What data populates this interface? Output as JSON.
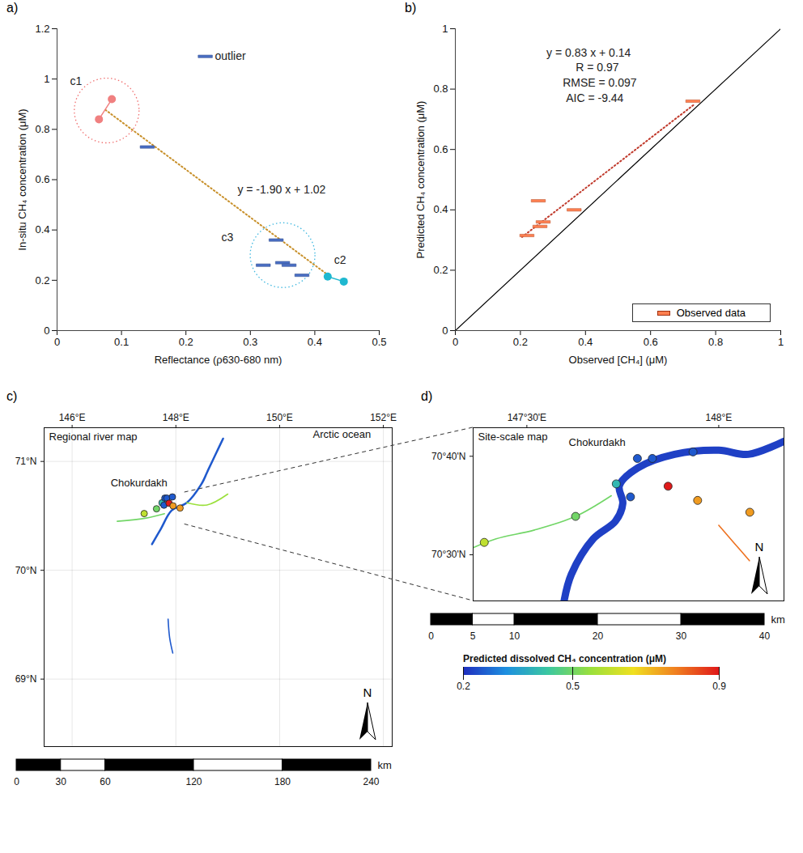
{
  "chart_data": [
    {
      "panel": "a)",
      "type": "scatter",
      "x_label": "Reflectance (ρ630-680 nm)",
      "y_label": "In-situ CH₄ concentration (μM)",
      "xlim": [
        0,
        0.5
      ],
      "xticks": [
        0,
        0.1,
        0.2,
        0.3,
        0.4,
        0.5
      ],
      "ylim": [
        0,
        1.2
      ],
      "yticks": [
        0,
        0.2,
        0.4,
        0.6,
        0.8,
        1,
        1.2
      ],
      "series": [
        {
          "color": "#f08080",
          "marker": "circle",
          "line_style": "solid",
          "x": [
            0.065,
            0.085
          ],
          "values": [
            0.84,
            0.92
          ]
        },
        {
          "color": "#1fb8d0",
          "marker": "circle",
          "line_style": "solid",
          "x": [
            0.42,
            0.445
          ],
          "values": [
            0.215,
            0.195
          ]
        },
        {
          "color": "#4a6fc4",
          "marker": "dash",
          "x": [
            0.14,
            0.23,
            0.32,
            0.34,
            0.35,
            0.36,
            0.38
          ],
          "values": [
            0.73,
            1.09,
            0.26,
            0.36,
            0.27,
            0.26,
            0.22
          ]
        }
      ],
      "lines": [
        {
          "x": [
            0.075,
            0.42
          ],
          "y": [
            0.8775,
            0.222
          ],
          "color": "#c8902a",
          "line_style": "dotted"
        }
      ],
      "clusters": [
        {
          "x": 0.077,
          "y": 0.875,
          "color": "#f07070",
          "line_style": "dotted"
        },
        {
          "x": 0.35,
          "y": 0.3,
          "color": "#40b8e0",
          "line_style": "dotted"
        }
      ],
      "annotations": [
        {
          "text": "c1",
          "x": 0.02,
          "y": 0.99
        },
        {
          "text": "c2",
          "x": 0.43,
          "y": 0.28
        },
        {
          "text": "c3",
          "x": 0.255,
          "y": 0.37
        },
        {
          "text": "outlier",
          "x": 0.245,
          "y": 1.09
        },
        {
          "text": "y = -1.90 x + 1.02",
          "x": 0.28,
          "y": 0.56
        }
      ]
    },
    {
      "panel": "b)",
      "type": "scatter",
      "x_label": "Observed [CH₄] (μM)",
      "y_label": "Predicted CH₄ concentration (μM)",
      "xlim": [
        0,
        1
      ],
      "xticks": [
        0,
        0.2,
        0.4,
        0.6,
        0.8,
        1
      ],
      "ylim": [
        0,
        1
      ],
      "yticks": [
        0,
        0.2,
        0.4,
        0.6,
        0.8,
        1
      ],
      "legend": "bottom-right",
      "series": [
        {
          "name": "Observed data",
          "color": "#ff7f50",
          "marker": "dash",
          "x": [
            0.22,
            0.255,
            0.26,
            0.27,
            0.365,
            0.73
          ],
          "values": [
            0.315,
            0.43,
            0.345,
            0.36,
            0.4,
            0.76
          ]
        }
      ],
      "lines": [
        {
          "x": [
            0.205,
            0.735
          ],
          "y": [
            0.31,
            0.75
          ],
          "color": "#c0392b",
          "line_style": "dotted"
        },
        {
          "x": [
            0,
            1
          ],
          "y": [
            0,
            1
          ],
          "color": "#000000",
          "line_style": "solid"
        }
      ],
      "annotations": [
        {
          "text": "y = 0.83 x + 0.14",
          "x": 0.28,
          "y": 0.92
        },
        {
          "text": "R = 0.97",
          "x": 0.37,
          "y": 0.87
        },
        {
          "text": "RMSE = 0.097",
          "x": 0.33,
          "y": 0.82
        },
        {
          "text": "AIC = -9.44",
          "x": 0.34,
          "y": 0.77
        }
      ]
    },
    {
      "panel": "c)",
      "type": "map",
      "title": "Regional river map",
      "xlim": [
        145.46,
        152.17
      ],
      "xticks": [
        {
          "value": 146,
          "label": "146°E"
        },
        {
          "value": 148,
          "label": "148°E"
        },
        {
          "value": 150,
          "label": "150°E"
        },
        {
          "value": 152,
          "label": "152°E"
        }
      ],
      "ylim": [
        68.38,
        71.31
      ],
      "yticks": [
        {
          "value": 69,
          "label": "69°N"
        },
        {
          "value": 70,
          "label": "70°N"
        },
        {
          "value": 71,
          "label": "71°N"
        }
      ],
      "grid": true,
      "rivers": [
        {
          "value": 0.25,
          "points": [
            [
              147.54,
              70.24
            ],
            [
              147.71,
              70.38
            ],
            [
              147.92,
              70.55
            ],
            [
              148.21,
              70.62
            ],
            [
              148.49,
              70.79
            ],
            [
              148.63,
              70.93
            ],
            [
              148.77,
              71.07
            ],
            [
              148.91,
              71.21
            ]
          ]
        },
        {
          "value": 0.25,
          "points": [
            [
              147.85,
              69.55
            ],
            [
              147.88,
              69.38
            ],
            [
              147.94,
              69.24
            ]
          ]
        },
        {
          "value": 0.5,
          "points": [
            [
              146.87,
              70.45
            ],
            [
              147.43,
              70.48
            ],
            [
              147.78,
              70.52
            ]
          ]
        },
        {
          "value": 0.55,
          "points": [
            [
              148.21,
              70.62
            ],
            [
              148.6,
              70.6
            ],
            [
              149.0,
              70.7
            ]
          ]
        }
      ],
      "sites": {
        "x": [
          147.389,
          147.627,
          147.733,
          147.788,
          147.827,
          147.933,
          147.77,
          147.868,
          147.945,
          148.081
        ],
        "y": [
          70.521,
          70.565,
          70.62,
          70.663,
          70.663,
          70.674,
          70.598,
          70.616,
          70.592,
          70.572
        ],
        "values": [
          0.6,
          0.5,
          0.4,
          0.25,
          0.25,
          0.25,
          0.25,
          0.9,
          0.75,
          0.75
        ]
      },
      "annotations": [
        {
          "text": "Chokurdakh",
          "x": 147.29,
          "y": 70.8
        },
        {
          "text": "Arctic ocean",
          "x": 151.2,
          "y": 71.25
        }
      ],
      "north": "N",
      "scale_bar": {
        "ticks": [
          0,
          30,
          60,
          120,
          180,
          240
        ],
        "unit": "km"
      }
    },
    {
      "panel": "d)",
      "type": "map",
      "title": "Site-scale map",
      "xlim": [
        147.36,
        148.17
      ],
      "xticks": [
        {
          "value": 147.5,
          "label": "147°30'E"
        },
        {
          "value": 148,
          "label": "148°E"
        }
      ],
      "ylim": [
        70.422,
        70.715
      ],
      "yticks": [
        {
          "value": 70.5,
          "label": "70°30'N"
        },
        {
          "value": 70.6667,
          "label": "70°40'N"
        }
      ],
      "grid": false,
      "rivers": [
        {
          "value": 0.22,
          "points": [
            [
              147.597,
              70.422
            ],
            [
              147.616,
              70.467
            ],
            [
              147.673,
              70.527
            ],
            [
              147.731,
              70.557
            ],
            [
              147.75,
              70.587
            ],
            [
              147.741,
              70.617
            ],
            [
              147.789,
              70.647
            ],
            [
              147.885,
              70.67
            ],
            [
              148.0,
              70.677
            ],
            [
              148.077,
              70.67
            ],
            [
              148.17,
              70.692
            ]
          ]
        },
        {
          "value": 0.5,
          "points": [
            [
              147.36,
              70.512
            ],
            [
              147.42,
              70.527
            ],
            [
              147.52,
              70.542
            ],
            [
              147.627,
              70.565
            ],
            [
              147.72,
              70.6
            ]
          ]
        },
        {
          "value": 0.8,
          "points": [
            [
              148.0,
              70.55
            ],
            [
              148.04,
              70.52
            ],
            [
              148.08,
              70.49
            ]
          ]
        }
      ],
      "sites": {
        "x": [
          147.389,
          147.627,
          147.733,
          147.788,
          147.827,
          147.933,
          147.77,
          147.868,
          147.945,
          148.081
        ],
        "y": [
          70.521,
          70.565,
          70.62,
          70.663,
          70.663,
          70.674,
          70.598,
          70.616,
          70.592,
          70.572
        ],
        "values": [
          0.6,
          0.5,
          0.4,
          0.25,
          0.25,
          0.25,
          0.25,
          0.9,
          0.75,
          0.75
        ]
      },
      "annotations": [
        {
          "text": "Chokurdakh",
          "x": 147.683,
          "y": 70.69
        }
      ],
      "north": "N",
      "scale_bar": {
        "ticks": [
          0,
          5,
          10,
          20,
          30,
          40
        ],
        "unit": "km"
      },
      "colorbar": {
        "label": "Predicted dissolved CH₄ concentration (μM)",
        "range": [
          0.2,
          0.9
        ],
        "ticks": [
          0.2,
          0.5,
          0.9
        ],
        "colors": [
          "#1f2fbf",
          "#1e90e0",
          "#3cc8a0",
          "#9be03c",
          "#f0e020",
          "#f08020",
          "#e01a1a"
        ]
      }
    }
  ]
}
